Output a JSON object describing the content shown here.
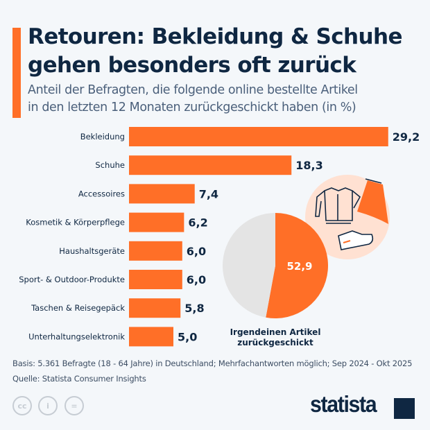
{
  "header": {
    "title_line1": "Retouren: Bekleidung & Schuhe",
    "title_line2": "gehen besonders oft zurück",
    "subtitle_line1": "Anteil der Befragten, die folgende online bestellte Artikel",
    "subtitle_line2": "in den letzten 12 Monaten zurückgeschickt haben (in %)"
  },
  "chart_data": [
    {
      "type": "bar",
      "orientation": "horizontal",
      "categories": [
        "Bekleidung",
        "Schuhe",
        "Accessoires",
        "Kosmetik & Körperpflege",
        "Haushaltsgeräte",
        "Sport- & Outdoor-Produkte",
        "Taschen & Reisegepäck",
        "Unterhaltungselektronik"
      ],
      "values": [
        29.2,
        18.3,
        7.4,
        6.2,
        6.0,
        6.0,
        5.8,
        5.0
      ],
      "labels": [
        "29,2",
        "18,3",
        "7,4",
        "6,2",
        "6,0",
        "6,0",
        "5,8",
        "5,0"
      ],
      "color": "#ff6f27",
      "grid": false
    },
    {
      "type": "pie",
      "values": [
        52.9,
        47.1
      ],
      "label": "52,9",
      "caption_line1": "Irgendeinen Artikel",
      "caption_line2": "zurückgeschickt",
      "colors": [
        "#ff6f27",
        "#e4e4e4"
      ]
    }
  ],
  "icons": [
    "jacket-icon",
    "dress-on-hanger-icon",
    "sneaker-icon"
  ],
  "footer": {
    "basis": "Basis: 5.361 Befragte (18 - 64 Jahre) in Deutschland; Mehrfachantworten möglich; Sep 2024 - Okt 2025",
    "source": "Quelle: Statista Consumer Insights",
    "logo": "statista"
  },
  "colors": {
    "accent": "#ff6f27",
    "text": "#0f2742",
    "background": "#f4f7fa"
  }
}
